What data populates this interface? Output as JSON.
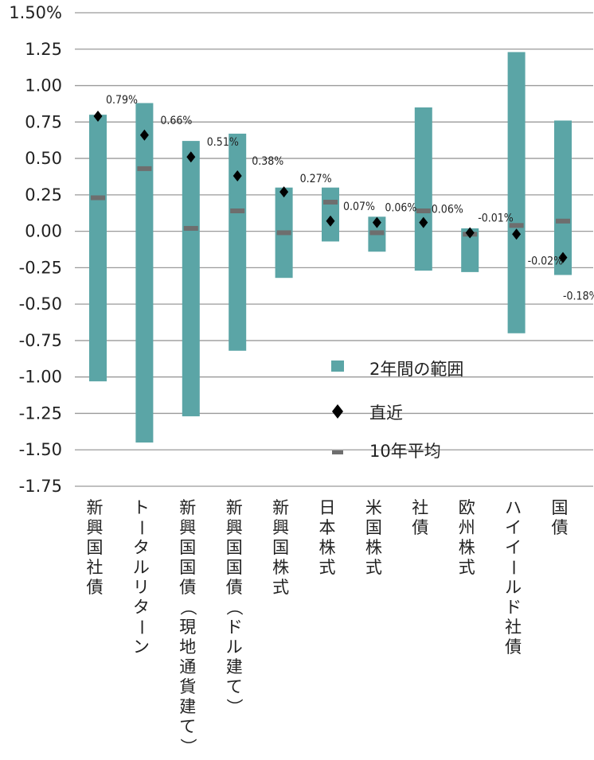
{
  "chart_data": {
    "type": "range-bar",
    "ylim": [
      -1.75,
      1.5
    ],
    "y_ticks": [
      "1.50%",
      "1.25",
      "1.00",
      "0.75",
      "0.50",
      "0.25",
      "0.00",
      "-0.25",
      "-0.50",
      "-0.75",
      "-1.00",
      "-1.25",
      "-1.50",
      "-1.75"
    ],
    "grid": true,
    "legend": {
      "position": "center-right",
      "items": [
        {
          "name": "2年間の範囲",
          "marker": "bar"
        },
        {
          "name": "直近",
          "marker": "diamond"
        },
        {
          "name": "10年平均",
          "marker": "dash"
        }
      ]
    },
    "categories": [
      "新興国社債",
      "トータルリターン",
      "新興国国債(現地通貨建て)",
      "新興国国債(ドル建て)",
      "新興国株式",
      "日本株式",
      "米国株式",
      "社債",
      "欧州株式",
      "ハイイールド社債",
      "国債"
    ],
    "range_low": [
      -1.03,
      -1.45,
      -1.27,
      -0.82,
      -0.32,
      -0.07,
      -0.14,
      -0.27,
      -0.28,
      -0.7,
      -0.3
    ],
    "range_high": [
      0.8,
      0.88,
      0.62,
      0.67,
      0.3,
      0.3,
      0.1,
      0.85,
      0.02,
      1.23,
      0.76
    ],
    "latest": [
      0.79,
      0.66,
      0.51,
      0.38,
      0.27,
      0.07,
      0.06,
      0.06,
      -0.01,
      -0.02,
      -0.18
    ],
    "latest_labels": [
      "0.79%",
      "0.66%",
      "0.51%",
      "0.38%",
      "0.27%",
      "0.07%",
      "0.06%",
      "0.06%",
      "-0.01%",
      "-0.02%",
      "-0.18%"
    ],
    "avg_10y": [
      0.23,
      0.43,
      0.02,
      0.14,
      -0.01,
      0.2,
      -0.01,
      0.14,
      -0.02,
      0.04,
      0.07
    ],
    "colors": {
      "range_bar": "#5ba5a6",
      "latest_marker": "#000000",
      "avg_marker": "#6e6e6e",
      "grid": "#9a9a9a"
    }
  }
}
